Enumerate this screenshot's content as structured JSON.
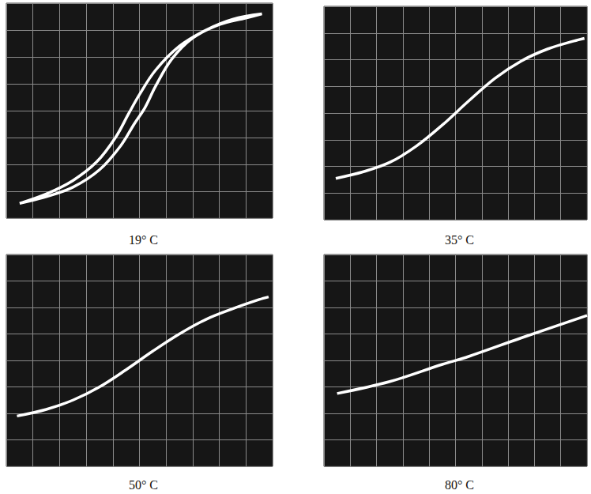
{
  "chart_data": [
    {
      "type": "line",
      "title": "19° C",
      "x": [
        -4.5,
        -3.5,
        -2.5,
        -1.5,
        -0.7,
        -0.2,
        0.2,
        0.6,
        1.2,
        2,
        3,
        4,
        4.6,
        3.5,
        2.5,
        1.5,
        0.6,
        0,
        -0.4,
        -0.9,
        -1.6,
        -2.5,
        -3.5,
        -4.5
      ],
      "values": [
        -3.45,
        -3.2,
        -2.85,
        -2.2,
        -1.3,
        -0.5,
        0.1,
        0.9,
        1.9,
        2.7,
        3.2,
        3.45,
        3.6,
        3.4,
        3.0,
        2.4,
        1.5,
        0.6,
        -0.1,
        -1.0,
        -1.9,
        -2.6,
        -3.1,
        -3.45
      ],
      "color": "#ffffff",
      "xlim": [
        -5,
        5
      ],
      "xticks": [
        -5,
        -4,
        -3,
        -2,
        -1,
        0,
        1,
        2,
        3,
        4,
        5
      ],
      "ylim": [
        -4,
        4
      ],
      "yticks": [
        -4,
        -3,
        -2,
        -1,
        0,
        1,
        2,
        3,
        4
      ],
      "grid": true,
      "tick_labels": false
    },
    {
      "type": "line",
      "title": "35° C",
      "x": [
        -4.55,
        -3.5,
        -2.5,
        -1.5,
        -0.5,
        0.5,
        1.5,
        2.5,
        3.5,
        4.5,
        4.9
      ],
      "values": [
        -2.45,
        -2.2,
        -1.85,
        -1.25,
        -0.45,
        0.45,
        1.3,
        1.95,
        2.4,
        2.7,
        2.8
      ],
      "color": "#ffffff",
      "xlim": [
        -5,
        5
      ],
      "xticks": [
        -5,
        -4,
        -3,
        -2,
        -1,
        0,
        1,
        2,
        3,
        4,
        5
      ],
      "ylim": [
        -4,
        4
      ],
      "yticks": [
        -4,
        -3,
        -2,
        -1,
        0,
        1,
        2,
        3,
        4
      ],
      "grid": true,
      "tick_labels": false
    },
    {
      "type": "line",
      "title": "50° C",
      "x": [
        -4.6,
        -3.5,
        -2.5,
        -1.5,
        -0.5,
        0.5,
        1.5,
        2.5,
        3.5,
        4.5,
        4.85
      ],
      "values": [
        -2.1,
        -1.85,
        -1.5,
        -1.0,
        -0.35,
        0.35,
        1.0,
        1.55,
        1.95,
        2.3,
        2.4
      ],
      "color": "#ffffff",
      "xlim": [
        -5,
        5
      ],
      "xticks": [
        -5,
        -4,
        -3,
        -2,
        -1,
        0,
        1,
        2,
        3,
        4,
        5
      ],
      "ylim": [
        -4,
        4
      ],
      "yticks": [
        -4,
        -3,
        -2,
        -1,
        0,
        1,
        2,
        3,
        4
      ],
      "grid": true,
      "tick_labels": false
    },
    {
      "type": "line",
      "title": "80° C",
      "x": [
        -4.5,
        -2.5,
        -0.5,
        0.5,
        2.5,
        5
      ],
      "values": [
        -1.25,
        -0.8,
        -0.15,
        0.15,
        0.85,
        1.7
      ],
      "color": "#ffffff",
      "xlim": [
        -5,
        5
      ],
      "xticks": [
        -5,
        -4,
        -3,
        -2,
        -1,
        0,
        1,
        2,
        3,
        4,
        5
      ],
      "ylim": [
        -4,
        4
      ],
      "yticks": [
        -4,
        -3,
        -2,
        -1,
        0,
        1,
        2,
        3,
        4
      ],
      "grid": true,
      "tick_labels": false
    }
  ]
}
